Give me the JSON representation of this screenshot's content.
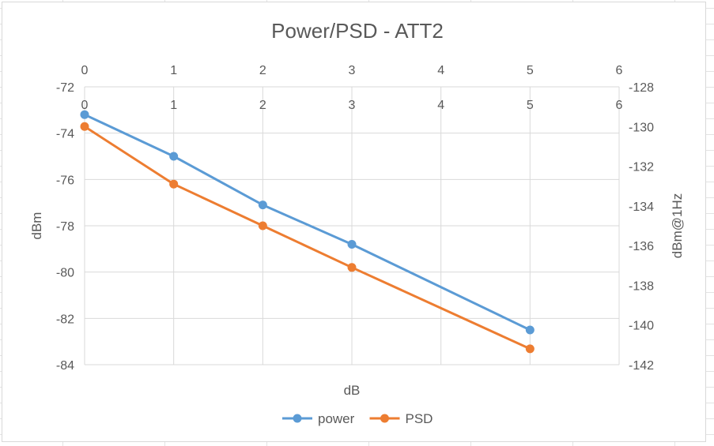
{
  "chart_data": {
    "type": "line",
    "title": "Power/PSD - ATT2",
    "xlabel": "dB",
    "ylabel_left": "dBm",
    "ylabel_right": "dBm@1Hz",
    "x_ticks_top": [
      "0",
      "1",
      "2",
      "3",
      "4",
      "5",
      "6"
    ],
    "x_ticks_inner": [
      "0",
      "1",
      "2",
      "3",
      "4",
      "5",
      "6"
    ],
    "y_left_ticks": [
      "-72",
      "-74",
      "-76",
      "-78",
      "-80",
      "-82",
      "-84"
    ],
    "y_right_ticks": [
      "-128",
      "-130",
      "-132",
      "-134",
      "-136",
      "-138",
      "-140",
      "-142"
    ],
    "xlim": [
      0,
      6
    ],
    "ylim_left": [
      -84,
      -72
    ],
    "ylim_right": [
      -142,
      -128
    ],
    "grid": true,
    "legend_position": "bottom",
    "series": [
      {
        "name": "power",
        "axis": "left",
        "color": "#5b9bd5",
        "x": [
          0,
          1,
          2,
          3,
          5
        ],
        "y": [
          -73.2,
          -75.0,
          -77.1,
          -78.8,
          -82.5
        ]
      },
      {
        "name": "PSD",
        "axis": "right",
        "color": "#ed7d31",
        "x": [
          0,
          1,
          2,
          3,
          5
        ],
        "y": [
          -130.0,
          -132.9,
          -135.0,
          -137.1,
          -141.2
        ]
      }
    ]
  }
}
